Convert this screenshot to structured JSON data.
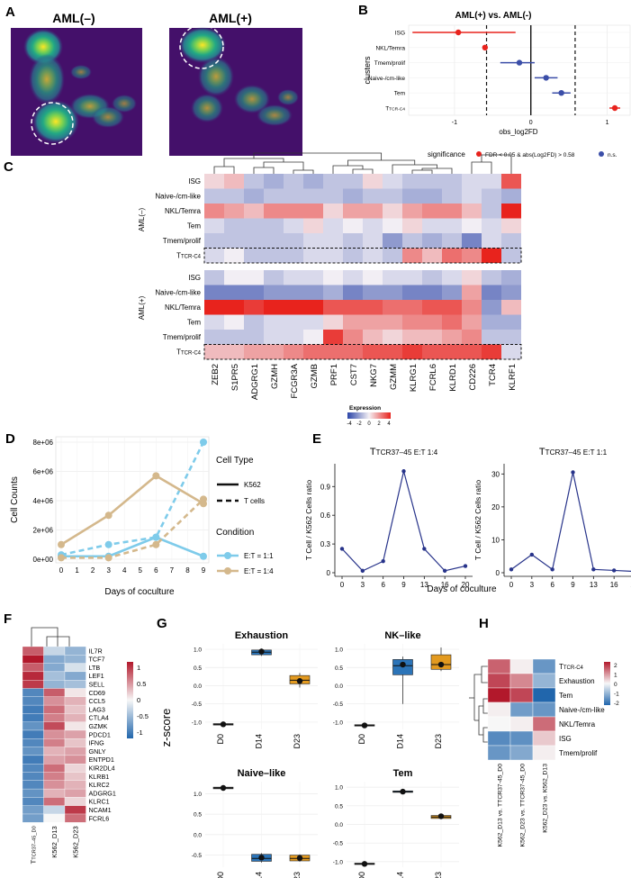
{
  "panel_labels": {
    "A": "A",
    "B": "B",
    "C": "C",
    "D": "D",
    "E": "E",
    "F": "F",
    "G": "G",
    "H": "H"
  },
  "panelA": {
    "left_title": "AML(–)",
    "right_title": "AML(+)"
  },
  "chart_data": [
    {
      "id": "B",
      "type": "scatter",
      "title": "AML(+) vs. AML(-)",
      "xlabel": "obs_log2FD",
      "ylabel": "clusters",
      "xlim": [
        -1.6,
        1.3
      ],
      "xticks": [
        -1,
        0,
        1
      ],
      "thresholds": [
        -0.58,
        0.58
      ],
      "categories": [
        "ISG",
        "NKL/Temra",
        "Tmem/prolif",
        "Naive-/cm-like",
        "Tem",
        "TTCR-C4"
      ],
      "points": [
        {
          "cluster": "ISG",
          "x": -0.95,
          "lo": -1.55,
          "hi": -0.2,
          "sig": true
        },
        {
          "cluster": "NKL/Temra",
          "x": -0.6,
          "lo": -0.62,
          "hi": -0.58,
          "sig": true
        },
        {
          "cluster": "Tmem/prolif",
          "x": -0.15,
          "lo": -0.4,
          "hi": 0.05,
          "sig": false
        },
        {
          "cluster": "Naive-/cm-like",
          "x": 0.2,
          "lo": 0.05,
          "hi": 0.35,
          "sig": false
        },
        {
          "cluster": "Tem",
          "x": 0.4,
          "lo": 0.28,
          "hi": 0.52,
          "sig": false
        },
        {
          "cluster": "TTCR-C4",
          "x": 1.1,
          "lo": 1.03,
          "hi": 1.17,
          "sig": true
        }
      ],
      "legend": {
        "title": "significance",
        "sig": "FDR < 0.05 & abs(Log2FD) > 0.58",
        "ns": "n.s."
      },
      "colors": {
        "sig": "#e8231d",
        "ns": "#3b4ea8"
      }
    },
    {
      "id": "C",
      "type": "heatmap",
      "columns": [
        "ZEB2",
        "S1PR5",
        "ADGRG1",
        "GZMH",
        "FCGR3A",
        "GZMB",
        "PRF1",
        "CST7",
        "NKG7",
        "GZMM",
        "KLRG1",
        "FCRL6",
        "KLRD1",
        "CD226",
        "TCR4",
        "KLRF1"
      ],
      "group_labels": [
        "AML(–)",
        "AML(+)"
      ],
      "rows_neg": [
        "ISG",
        "Naive-/cm-like",
        "NKL/Temra",
        "Tem",
        "Tmem/prolif",
        "TTCR-C4"
      ],
      "rows_pos": [
        "ISG",
        "Naive-/cm-like",
        "NKL/Temra",
        "Tem",
        "Tmem/prolif",
        "TTCR-C4"
      ],
      "values_neg": [
        [
          0.5,
          1,
          -1,
          -1.5,
          -1,
          -1.5,
          -1,
          -1,
          0.5,
          -0.5,
          -1,
          -1,
          -1,
          -0.5,
          -0.5,
          3
        ],
        [
          -1,
          -1,
          -1.5,
          -1,
          -1,
          -1,
          -1,
          -1.5,
          -1,
          -1,
          -1.5,
          -1.5,
          -1,
          -0.5,
          -1,
          -1.5
        ],
        [
          2,
          1.5,
          1,
          2,
          2,
          2,
          0.5,
          1.5,
          1.5,
          0.5,
          1.5,
          2,
          2,
          1,
          -1,
          4
        ],
        [
          -0.5,
          -1,
          -1,
          -1,
          -0.5,
          0.5,
          -0.5,
          0,
          -0.5,
          0,
          0.5,
          -0.5,
          -0.5,
          0,
          -0.5,
          0.5
        ],
        [
          -1,
          -1,
          -1,
          -1,
          -1,
          -0.5,
          -0.5,
          -1,
          -0.5,
          -2,
          -1,
          -1.5,
          -1,
          -2.5,
          -0.5,
          -1
        ],
        [
          -0.5,
          0,
          -1,
          -1,
          -1,
          -0.5,
          -0.5,
          -1,
          -0.5,
          -1,
          2,
          1,
          2.5,
          2,
          4,
          -1
        ]
      ],
      "values_pos": [
        [
          -1,
          0,
          0,
          -1,
          -0.5,
          -0.5,
          0,
          -0.5,
          0,
          -0.5,
          -0.5,
          -1,
          -0.5,
          0.5,
          -1,
          -1.5
        ],
        [
          -2.5,
          -2.5,
          -2.5,
          -2,
          -2,
          -2,
          -1.5,
          -2.5,
          -2,
          -2,
          -2.5,
          -2.5,
          -2,
          1.5,
          -2.5,
          -2
        ],
        [
          4,
          4,
          3.5,
          4,
          4,
          4,
          3,
          3,
          3,
          2.5,
          2.5,
          3,
          3,
          2,
          -2,
          1
        ],
        [
          -0.5,
          0,
          -1,
          -0.5,
          -0.5,
          -0.5,
          0.5,
          1.5,
          1.5,
          1.5,
          2,
          2,
          2.5,
          1.5,
          -1.5,
          -1.5
        ],
        [
          -1,
          -1,
          -1,
          -0.5,
          -0.5,
          0,
          3.5,
          2,
          1,
          0.5,
          1,
          1,
          1.5,
          2,
          -1,
          -1
        ],
        [
          1,
          1,
          1.5,
          1.5,
          2,
          2.5,
          2.5,
          2.5,
          3,
          3,
          3.5,
          3,
          3,
          3,
          3.5,
          -0.5
        ]
      ],
      "colorbar": {
        "title": "Expression",
        "ticks": [
          -4,
          -2,
          0,
          2,
          4
        ]
      }
    },
    {
      "id": "D",
      "type": "line",
      "xlabel": "Days of coculture",
      "ylabel": "Cell Counts",
      "x": [
        0,
        3,
        6,
        9
      ],
      "ylim": [
        0,
        8000000
      ],
      "yticks": [
        0,
        2000000,
        4000000,
        6000000,
        8000000
      ],
      "yticklabels": [
        "0e+00",
        "2e+06",
        "4e+06",
        "6e+06",
        "8e+06"
      ],
      "xticks": [
        0,
        1,
        2,
        3,
        4,
        5,
        6,
        7,
        8,
        9
      ],
      "series": [
        {
          "name": "K562, E:T = 1:1",
          "style": "solid",
          "color": "#7ecbea",
          "values": [
            200000,
            200000,
            1500000,
            200000
          ]
        },
        {
          "name": "T cells, E:T = 1:1",
          "style": "dashed",
          "color": "#7ecbea",
          "values": [
            300000,
            1000000,
            1500000,
            8000000
          ]
        },
        {
          "name": "K562, E:T = 1:4",
          "style": "solid",
          "color": "#d4b88c",
          "values": [
            1000000,
            3000000,
            5700000,
            3800000
          ]
        },
        {
          "name": "T cells, E:T = 1:4",
          "style": "dashed",
          "color": "#d4b88c",
          "values": [
            100000,
            100000,
            1000000,
            4100000
          ]
        }
      ],
      "legend": {
        "type_title": "Cell Type",
        "solid": "K562",
        "dashed": "T cells",
        "cond_title": "Condition",
        "c1": "E:T = 1:1",
        "c2": "E:T = 1:4"
      }
    },
    {
      "id": "E1",
      "type": "line",
      "title": "TTCR37–45 E:T 1:4",
      "ylabel": "T Cell / K562 Cells ratio",
      "x": [
        0,
        3,
        6,
        9,
        13,
        16,
        20
      ],
      "values": [
        0.25,
        0.02,
        0.12,
        1.06,
        0.25,
        0.02,
        0.07
      ],
      "ylim": [
        0,
        1.1
      ],
      "yticks": [
        0,
        0.3,
        0.6,
        0.9
      ],
      "color": "#27338a"
    },
    {
      "id": "E2",
      "type": "line",
      "title": "TTCR37–45 E:T 1:1",
      "ylabel": "T Cell / K562 Cells ratio",
      "x": [
        0,
        3,
        6,
        9,
        13,
        16,
        20
      ],
      "values": [
        1,
        5.5,
        1,
        30.5,
        1,
        0.7,
        0.4
      ],
      "ylim": [
        0,
        32
      ],
      "yticks": [
        0,
        10,
        20,
        30
      ],
      "color": "#27338a",
      "xlabel": "Days of coculture"
    },
    {
      "id": "F",
      "type": "heatmap",
      "genes": [
        "IL7R",
        "TCF7",
        "LTB",
        "LEF1",
        "SELL",
        "CD69",
        "CCL5",
        "LAG3",
        "CTLA4",
        "GZMK",
        "PDCD1",
        "IFNG",
        "GNLY",
        "ENTPD1",
        "KIR2DL4",
        "KLRB1",
        "KLRC2",
        "ADGRG1",
        "KLRC1",
        "NCAM1",
        "FCRL6"
      ],
      "samples": [
        "TTCR37–45_D0",
        "K562_D13",
        "K562_D23"
      ],
      "values": [
        [
          0.9,
          -0.3,
          -0.6
        ],
        [
          1.3,
          -0.7,
          -0.6
        ],
        [
          0.9,
          -0.7,
          -0.2
        ],
        [
          1.2,
          -0.5,
          -0.7
        ],
        [
          1.1,
          -0.6,
          -0.5
        ],
        [
          -1.0,
          0.9,
          0.1
        ],
        [
          -1.0,
          0.6,
          0.4
        ],
        [
          -1.1,
          0.8,
          0.3
        ],
        [
          -1.1,
          0.7,
          0.4
        ],
        [
          -0.9,
          1.0,
          0.1
        ],
        [
          -1.1,
          0.6,
          0.5
        ],
        [
          -1.0,
          0.7,
          0.3
        ],
        [
          -0.9,
          0.4,
          0.5
        ],
        [
          -1.1,
          0.5,
          0.6
        ],
        [
          -1.0,
          0.8,
          0.2
        ],
        [
          -1.0,
          0.7,
          0.3
        ],
        [
          -1.0,
          0.6,
          0.4
        ],
        [
          -0.9,
          0.4,
          0.5
        ],
        [
          -1.0,
          0.8,
          0.2
        ],
        [
          -0.8,
          -0.3,
          1.1
        ],
        [
          -0.8,
          0.0,
          0.8
        ]
      ],
      "colorbar": {
        "ticks": [
          "1",
          "0.5",
          "0",
          "-0.5",
          "-1"
        ]
      }
    },
    {
      "id": "G",
      "type": "box",
      "ylabel": "z-score",
      "categories": [
        "D0",
        "D14",
        "D23"
      ],
      "colors": [
        "#333333",
        "#2b74b8",
        "#e39a1f"
      ],
      "panels": [
        {
          "title": "Exhaustion",
          "ylim": [
            -1.15,
            1.1
          ],
          "yticks": [
            -1.0,
            -0.5,
            0.0,
            0.5,
            1.0
          ],
          "yticklabels": [
            "-1.0",
            "-0.5",
            "0.0",
            "0.5",
            "1.0"
          ],
          "boxes": [
            {
              "q1": -1.08,
              "med": -1.06,
              "q3": -1.04,
              "lo": -1.1,
              "hi": -1.02,
              "mean": -1.06
            },
            {
              "q1": 0.85,
              "med": 0.92,
              "q3": 0.98,
              "lo": 0.82,
              "hi": 1.02,
              "mean": 0.94
            },
            {
              "q1": 0.05,
              "med": 0.15,
              "q3": 0.28,
              "lo": -0.05,
              "hi": 0.35,
              "mean": 0.13
            }
          ]
        },
        {
          "title": "NK–like",
          "ylim": [
            -1.15,
            1.1
          ],
          "yticks": [
            -1.0,
            -0.5,
            0.0,
            0.5,
            1.0
          ],
          "yticklabels": [
            "-1.0",
            "-0.5",
            "0.0",
            "0.5",
            "1.0"
          ],
          "boxes": [
            {
              "q1": -1.1,
              "med": -1.09,
              "q3": -1.07,
              "lo": -1.12,
              "hi": -1.05,
              "mean": -1.09
            },
            {
              "q1": 0.3,
              "med": 0.55,
              "q3": 0.72,
              "lo": -0.5,
              "hi": 0.8,
              "mean": 0.58
            },
            {
              "q1": 0.45,
              "med": 0.58,
              "q3": 0.85,
              "lo": 0.4,
              "hi": 1.05,
              "mean": 0.58
            }
          ]
        },
        {
          "title": "Naive–like",
          "ylim": [
            -0.75,
            1.25
          ],
          "yticks": [
            -0.5,
            0.0,
            0.5,
            1.0
          ],
          "yticklabels": [
            "-0.5",
            "0.0",
            "0.5",
            "1.0"
          ],
          "boxes": [
            {
              "q1": 1.12,
              "med": 1.14,
              "q3": 1.16,
              "lo": 1.1,
              "hi": 1.18,
              "mean": 1.14
            },
            {
              "q1": -0.65,
              "med": -0.58,
              "q3": -0.48,
              "lo": -0.68,
              "hi": -0.45,
              "mean": -0.56
            },
            {
              "q1": -0.64,
              "med": -0.58,
              "q3": -0.5,
              "lo": -0.66,
              "hi": -0.48,
              "mean": -0.57
            }
          ]
        },
        {
          "title": "Tem",
          "ylim": [
            -1.1,
            1.1
          ],
          "yticks": [
            -1.0,
            -0.5,
            0.0,
            0.5,
            1.0
          ],
          "yticklabels": [
            "-1.0",
            "-0.5",
            "0.0",
            "0.5",
            "1.0"
          ],
          "boxes": [
            {
              "q1": -1.07,
              "med": -1.06,
              "q3": -1.04,
              "lo": -1.08,
              "hi": -1.03,
              "mean": -1.06
            },
            {
              "q1": 0.86,
              "med": 0.88,
              "q3": 0.9,
              "lo": 0.85,
              "hi": 0.91,
              "mean": 0.88
            },
            {
              "q1": 0.16,
              "med": 0.2,
              "q3": 0.24,
              "lo": 0.14,
              "hi": 0.26,
              "mean": 0.22
            }
          ]
        }
      ]
    },
    {
      "id": "H",
      "type": "heatmap",
      "rows": [
        "TTCR-C4",
        "Exhaustion",
        "Tem",
        "Naive-/cm-like",
        "NKL/Temra",
        "ISG",
        "Tmem/prolif"
      ],
      "cols": [
        "K562_D13 vs. TTCR37-45_D0",
        "K562_D23 vs. TTCR37-45_D0",
        "K562_D23 vs. K562_D13"
      ],
      "values": [
        [
          1.6,
          0.1,
          -1.6
        ],
        [
          1.9,
          1.2,
          -1.1
        ],
        [
          2.4,
          1.9,
          -2.4
        ],
        [
          0.1,
          -1.5,
          -1.6
        ],
        [
          0.0,
          0.1,
          1.5
        ],
        [
          -1.8,
          -1.7,
          0.5
        ],
        [
          -1.6,
          -1.3,
          0.1
        ]
      ],
      "colorbar": {
        "ticks": [
          "2",
          "1",
          "0",
          "-1",
          "-2"
        ]
      }
    }
  ]
}
